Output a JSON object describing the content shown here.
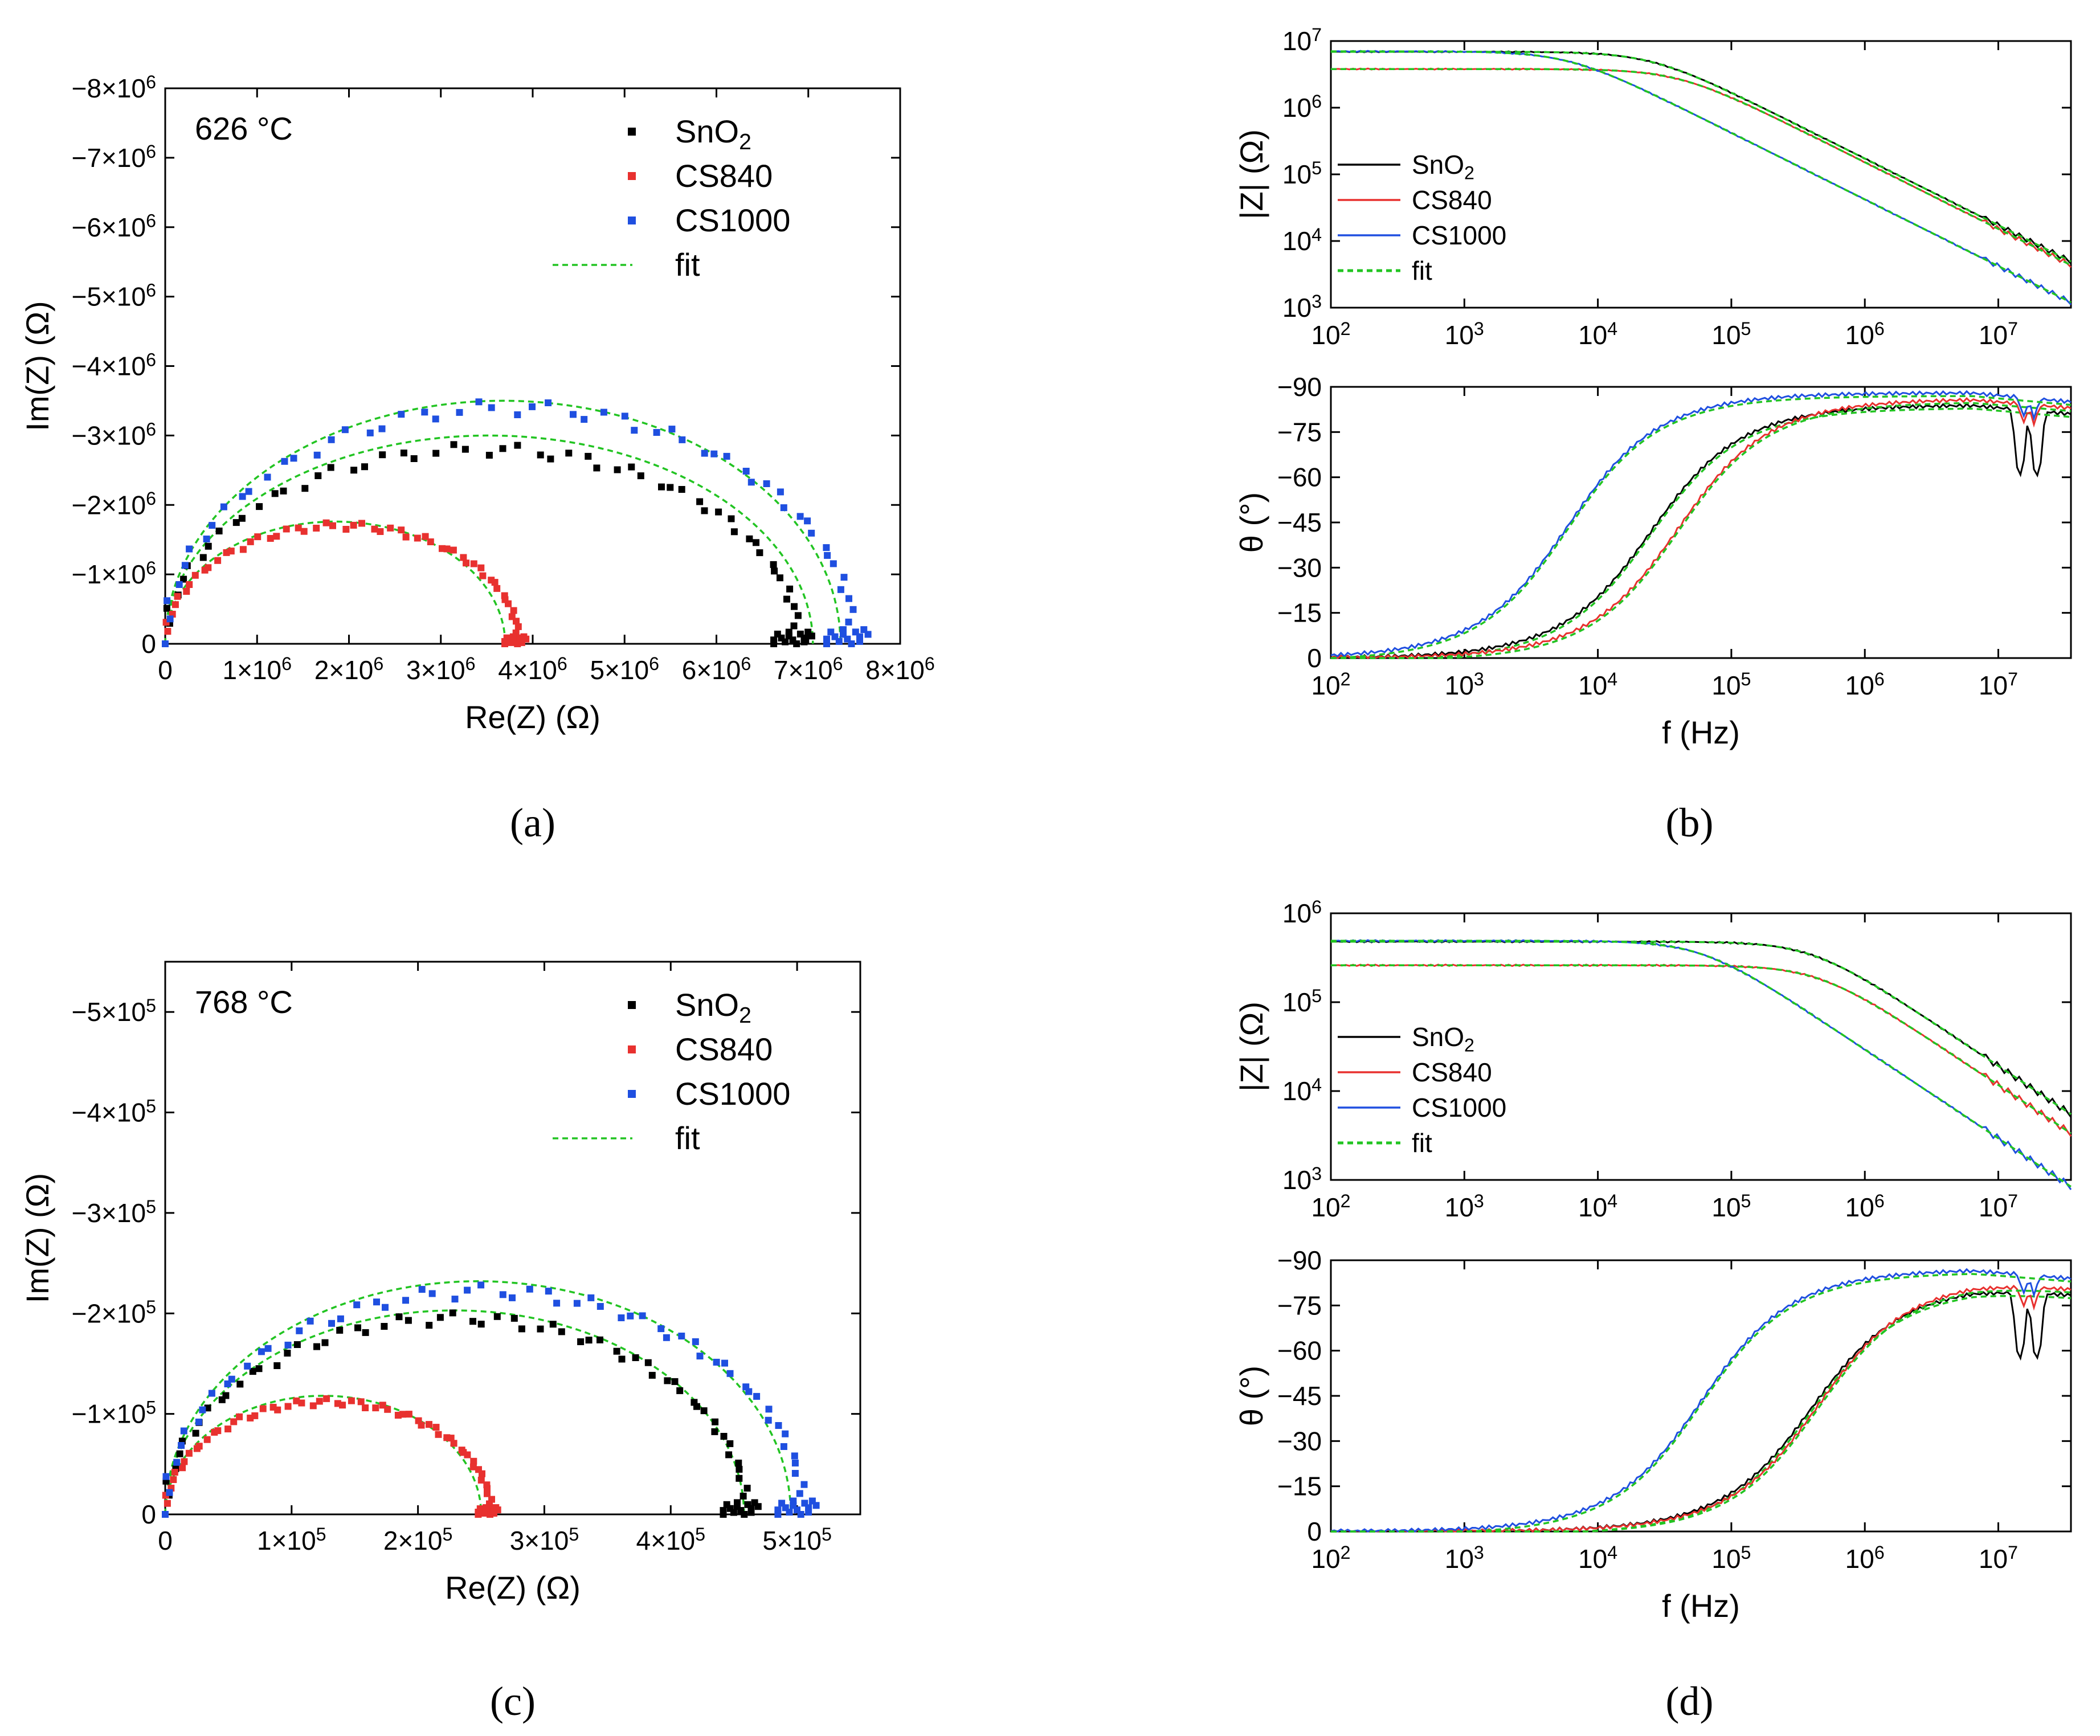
{
  "figure": {
    "panel_labels": [
      "(a)",
      "(b)",
      "(c)",
      "(d)"
    ],
    "colors": {
      "SnO2": "#000000",
      "CS840": "#e8312f",
      "CS1000": "#1f4fe0",
      "fit": "#22c422"
    }
  },
  "chart_data": [
    {
      "id": "a",
      "type": "scatter",
      "panel_label": "(a)",
      "annotation": "626 °C",
      "xlabel": "Re(Z) (Ω)",
      "ylabel": "Im(Z) (Ω)",
      "xlim": [
        0,
        8000000
      ],
      "ylim": [
        0,
        -8000000
      ],
      "scale_exp": 6,
      "xticks": [
        0,
        1000000,
        2000000,
        3000000,
        4000000,
        5000000,
        6000000,
        7000000,
        8000000
      ],
      "xtick_labels": [
        "0",
        "1×10",
        "2×10",
        "3×10",
        "4×10",
        "5×10",
        "6×10",
        "7×10",
        "8×10"
      ],
      "yticks": [
        0,
        -1000000,
        -2000000,
        -3000000,
        -4000000,
        -5000000,
        -6000000,
        -7000000,
        -8000000
      ],
      "ytick_labels": [
        "0",
        "−1×10",
        "−2×10",
        "−3×10",
        "−4×10",
        "−5×10",
        "−6×10",
        "−7×10",
        "−8×10"
      ],
      "legend": [
        {
          "label": "SnO",
          "sub": "2",
          "kind": "marker",
          "color": "#000000"
        },
        {
          "label": "CS840",
          "sub": "",
          "kind": "marker",
          "color": "#e8312f"
        },
        {
          "label": "CS1000",
          "sub": "",
          "kind": "marker",
          "color": "#1f4fe0"
        },
        {
          "label": "fit",
          "sub": "",
          "kind": "dash",
          "color": "#22c422"
        }
      ],
      "series": [
        {
          "name": "SnO2",
          "color": "#000000",
          "R": 6900000,
          "peak": 2800000,
          "n": 55
        },
        {
          "name": "CS840",
          "color": "#e8312f",
          "R": 3850000,
          "peak": 1700000,
          "n": 55
        },
        {
          "name": "CS1000",
          "color": "#1f4fe0",
          "R": 7500000,
          "peak": 3400000,
          "n": 55
        }
      ],
      "fits": [
        {
          "name": "SnO2 fit",
          "R": 7050000,
          "peak": 3000000
        },
        {
          "name": "CS840 fit",
          "R": 3700000,
          "peak": 1760000
        },
        {
          "name": "CS1000 fit",
          "R": 7350000,
          "peak": 3500000
        }
      ]
    },
    {
      "id": "b",
      "type": "line",
      "panel_label": "(b)",
      "xlabel": "f (Hz)",
      "ylabel_top": "|Z| (Ω)",
      "ylabel_bottom": "θ (°)",
      "xlim": [
        100,
        35000000
      ],
      "xtick_exps": [
        "2",
        "3",
        "4",
        "5",
        "6",
        "7"
      ],
      "top_ylim_exp": [
        3,
        7
      ],
      "top_ytick_exps": [
        "3",
        "4",
        "5",
        "6",
        "7"
      ],
      "bottom_ylim": [
        0,
        -90
      ],
      "bottom_yticks": [
        "0",
        "−15",
        "−30",
        "−45",
        "−60",
        "−75",
        "−90"
      ],
      "legend": [
        {
          "label": "SnO",
          "sub": "2",
          "kind": "solid",
          "color": "#000000"
        },
        {
          "label": "CS840",
          "sub": "",
          "kind": "solid",
          "color": "#e8312f"
        },
        {
          "label": "CS1000",
          "sub": "",
          "kind": "solid",
          "color": "#1f4fe0"
        },
        {
          "label": "fit",
          "sub": "",
          "kind": "dash",
          "color": "#22c422"
        }
      ],
      "series": [
        {
          "name": "SnO2",
          "color": "#000000",
          "R": 6900000,
          "fc": 25000,
          "theta_max": 84,
          "dip": true
        },
        {
          "name": "CS840",
          "color": "#e8312f",
          "R": 3800000,
          "fc": 40000,
          "theta_max": 86,
          "dip": false
        },
        {
          "name": "CS1000",
          "color": "#1f4fe0",
          "R": 7000000,
          "fc": 6000,
          "theta_max": 88,
          "dip": false
        }
      ]
    },
    {
      "id": "c",
      "type": "scatter",
      "panel_label": "(c)",
      "annotation": "768 °C",
      "xlabel": "Re(Z) (Ω)",
      "ylabel": "Im(Z) (Ω)",
      "xlim": [
        0,
        550000
      ],
      "ylim": [
        0,
        -550000
      ],
      "scale_exp": 5,
      "xticks": [
        0,
        100000,
        200000,
        300000,
        400000,
        500000
      ],
      "xtick_labels": [
        "0",
        "1×10",
        "2×10",
        "3×10",
        "4×10",
        "5×10"
      ],
      "yticks": [
        0,
        -100000,
        -200000,
        -300000,
        -400000,
        -500000
      ],
      "ytick_labels": [
        "0",
        "−1×10",
        "−2×10",
        "−3×10",
        "−4×10",
        "−5×10"
      ],
      "legend": [
        {
          "label": "SnO",
          "sub": "2",
          "kind": "marker",
          "color": "#000000"
        },
        {
          "label": "CS840",
          "sub": "",
          "kind": "marker",
          "color": "#e8312f"
        },
        {
          "label": "CS1000",
          "sub": "",
          "kind": "marker",
          "color": "#1f4fe0"
        },
        {
          "label": "fit",
          "sub": "",
          "kind": "dash",
          "color": "#22c422"
        }
      ],
      "series": [
        {
          "name": "SnO2",
          "color": "#000000",
          "R": 460000,
          "peak": 195000,
          "n": 60
        },
        {
          "name": "CS840",
          "color": "#e8312f",
          "R": 258000,
          "peak": 112000,
          "n": 60
        },
        {
          "name": "CS1000",
          "color": "#1f4fe0",
          "R": 505000,
          "peak": 222000,
          "n": 60
        }
      ],
      "fits": [
        {
          "name": "SnO2 fit",
          "R": 458000,
          "peak": 203000
        },
        {
          "name": "CS840 fit",
          "R": 250000,
          "peak": 118000
        },
        {
          "name": "CS1000 fit",
          "R": 495000,
          "peak": 232000
        }
      ]
    },
    {
      "id": "d",
      "type": "line",
      "panel_label": "(d)",
      "xlabel": "f (Hz)",
      "ylabel_top": "|Z| (Ω)",
      "ylabel_bottom": "θ (°)",
      "xlim": [
        100,
        35000000
      ],
      "xtick_exps": [
        "2",
        "3",
        "4",
        "5",
        "6",
        "7"
      ],
      "top_ylim_exp": [
        3,
        6
      ],
      "top_ytick_exps": [
        "3",
        "4",
        "5",
        "6"
      ],
      "bottom_ylim": [
        0,
        -90
      ],
      "bottom_yticks": [
        "0",
        "−15",
        "−30",
        "−45",
        "−60",
        "−75",
        "−90"
      ],
      "legend": [
        {
          "label": "SnO",
          "sub": "2",
          "kind": "solid",
          "color": "#000000"
        },
        {
          "label": "CS840",
          "sub": "",
          "kind": "solid",
          "color": "#e8312f"
        },
        {
          "label": "CS1000",
          "sub": "",
          "kind": "solid",
          "color": "#1f4fe0"
        },
        {
          "label": "fit",
          "sub": "",
          "kind": "dash",
          "color": "#22c422"
        }
      ],
      "series": [
        {
          "name": "SnO2",
          "color": "#000000",
          "R": 480000,
          "fc": 400000,
          "theta_max": 82,
          "dip": true
        },
        {
          "name": "CS840",
          "color": "#e8312f",
          "R": 260000,
          "fc": 450000,
          "theta_max": 84,
          "dip": false
        },
        {
          "name": "CS1000",
          "color": "#1f4fe0",
          "R": 490000,
          "fc": 60000,
          "theta_max": 87,
          "dip": false
        }
      ]
    }
  ]
}
